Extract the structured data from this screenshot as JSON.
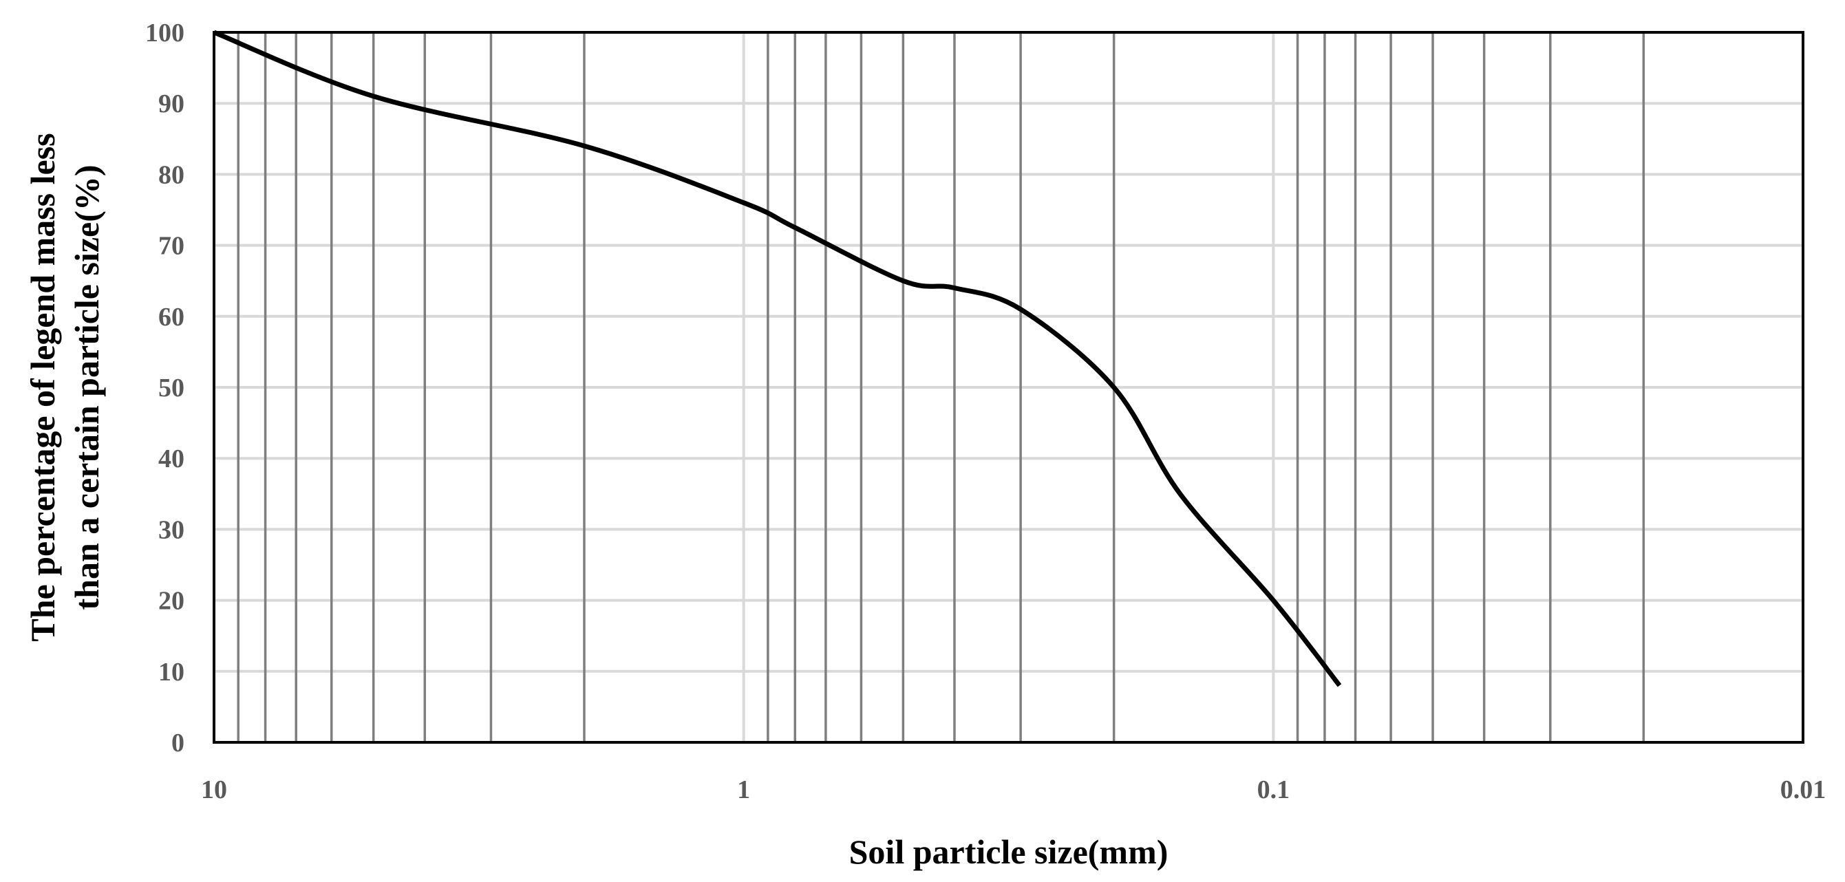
{
  "chart_data": {
    "type": "line",
    "title": "",
    "xlabel": "Soil particle size(mm)",
    "ylabel_lines": [
      "The percentage of legend mass less",
      "than a certain particle size(%)"
    ],
    "x_scale": "log",
    "x_reversed": true,
    "xlim": [
      10,
      0.01
    ],
    "ylim": [
      0,
      100
    ],
    "x_ticks": [
      10,
      1,
      0.1,
      0.01
    ],
    "x_tick_labels": [
      "10",
      "1",
      "0.1",
      "0.01"
    ],
    "y_ticks": [
      0,
      10,
      20,
      30,
      40,
      50,
      60,
      70,
      80,
      90,
      100
    ],
    "y_tick_labels": [
      "0",
      "10",
      "20",
      "30",
      "40",
      "50",
      "60",
      "70",
      "80",
      "90",
      "100"
    ],
    "grid": true,
    "legend": "none",
    "series": [
      {
        "x": [
          10,
          5,
          2,
          1,
          0.8,
          0.5,
          0.4,
          0.3,
          0.2,
          0.15,
          0.1,
          0.075
        ],
        "y": [
          100,
          91,
          84,
          76,
          72.5,
          65,
          64,
          61,
          50,
          35,
          20,
          8
        ]
      }
    ]
  },
  "colors": {
    "line": "#000000",
    "major_grid": "#d9d9d9",
    "minor_grid": "#7f7f7f",
    "frame": "#000000",
    "tick_text": "#595959",
    "title_text": "#000000"
  }
}
